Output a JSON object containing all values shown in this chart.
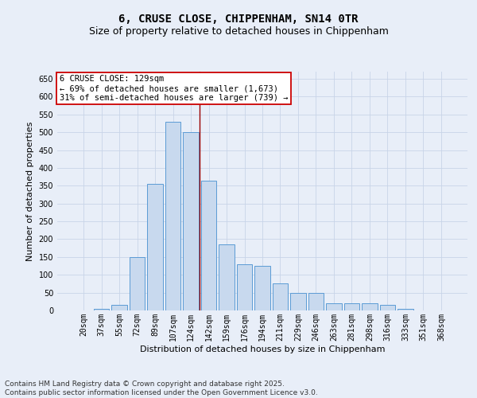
{
  "title_line1": "6, CRUSE CLOSE, CHIPPENHAM, SN14 0TR",
  "title_line2": "Size of property relative to detached houses in Chippenham",
  "xlabel": "Distribution of detached houses by size in Chippenham",
  "ylabel": "Number of detached properties",
  "categories": [
    "20sqm",
    "37sqm",
    "55sqm",
    "72sqm",
    "89sqm",
    "107sqm",
    "124sqm",
    "142sqm",
    "159sqm",
    "176sqm",
    "194sqm",
    "211sqm",
    "229sqm",
    "246sqm",
    "263sqm",
    "281sqm",
    "298sqm",
    "316sqm",
    "333sqm",
    "351sqm",
    "368sqm"
  ],
  "values": [
    0,
    5,
    15,
    150,
    355,
    530,
    500,
    365,
    185,
    130,
    125,
    75,
    50,
    50,
    20,
    20,
    20,
    15,
    5,
    0,
    0
  ],
  "bar_color": "#c8d9ee",
  "bar_edge_color": "#5b9bd5",
  "vline_x": 6.5,
  "vline_color": "#990000",
  "ylim_max": 670,
  "yticks": [
    0,
    50,
    100,
    150,
    200,
    250,
    300,
    350,
    400,
    450,
    500,
    550,
    600,
    650
  ],
  "annotation_line1": "6 CRUSE CLOSE: 129sqm",
  "annotation_line2": "← 69% of detached houses are smaller (1,673)",
  "annotation_line3": "31% of semi-detached houses are larger (739) →",
  "annotation_box_facecolor": "#ffffff",
  "annotation_box_edgecolor": "#cc0000",
  "grid_color": "#c8d4e8",
  "bg_color": "#e8eef8",
  "footer_line1": "Contains HM Land Registry data © Crown copyright and database right 2025.",
  "footer_line2": "Contains public sector information licensed under the Open Government Licence v3.0.",
  "title1_fontsize": 10,
  "title2_fontsize": 9,
  "axis_label_fontsize": 8,
  "tick_fontsize": 7,
  "annotation_fontsize": 7.5,
  "footer_fontsize": 6.5
}
